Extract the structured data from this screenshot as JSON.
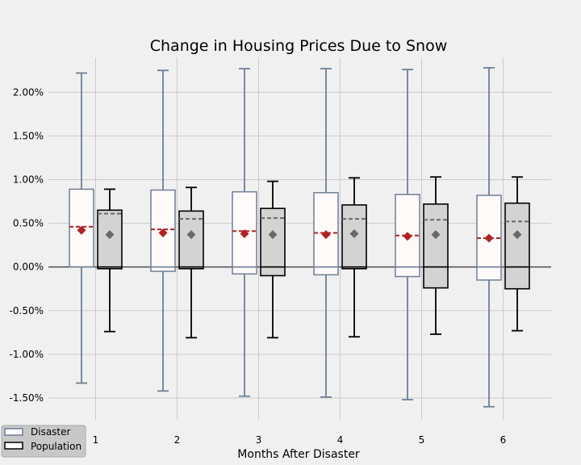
{
  "chart_data": {
    "type": "box",
    "title": "Change in Housing Prices Due to Snow",
    "xlabel": "Months After Disaster",
    "ylabel": "",
    "categories": [
      "1",
      "2",
      "3",
      "4",
      "5",
      "6"
    ],
    "ylim": [
      -0.0175,
      0.024
    ],
    "yticks": [
      -0.015,
      -0.01,
      -0.005,
      0.0,
      0.005,
      0.01,
      0.015,
      0.02
    ],
    "ytick_labels": [
      "-1.50%",
      "-1.00%",
      "-0.50%",
      "0.00%",
      "0.50%",
      "1.00%",
      "1.50%",
      "2.00%"
    ],
    "grid": true,
    "legend_position": "bottom-left",
    "series": [
      {
        "name": "Disaster",
        "box_fill": "#fffafa",
        "edge_color": "#6e7f96",
        "mean_color": "#b22222",
        "boxes": [
          {
            "whislo": -0.0133,
            "q1": 0.0,
            "med": 0.0,
            "q3": 0.0089,
            "whishi": 0.0222,
            "mean": 0.0042,
            "mean_line": 0.0046
          },
          {
            "whislo": -0.0142,
            "q1": -0.0005,
            "med": 0.0,
            "q3": 0.0088,
            "whishi": 0.0225,
            "mean": 0.0039,
            "mean_line": 0.0043
          },
          {
            "whislo": -0.0148,
            "q1": -0.0008,
            "med": 0.0,
            "q3": 0.0086,
            "whishi": 0.0227,
            "mean": 0.0038,
            "mean_line": 0.0041
          },
          {
            "whislo": -0.0149,
            "q1": -0.0009,
            "med": 0.0,
            "q3": 0.0085,
            "whishi": 0.0227,
            "mean": 0.0037,
            "mean_line": 0.0039
          },
          {
            "whislo": -0.0152,
            "q1": -0.0011,
            "med": 0.0,
            "q3": 0.0083,
            "whishi": 0.0226,
            "mean": 0.0035,
            "mean_line": 0.0036
          },
          {
            "whislo": -0.016,
            "q1": -0.0015,
            "med": 0.0,
            "q3": 0.0082,
            "whishi": 0.0228,
            "mean": 0.0033,
            "mean_line": 0.0033
          }
        ]
      },
      {
        "name": "Population",
        "box_fill": "#d3d3d3",
        "edge_color": "#000000",
        "mean_color": "#696969",
        "boxes": [
          {
            "whislo": -0.0074,
            "q1": -0.0002,
            "med": 0.0,
            "q3": 0.0065,
            "whishi": 0.0089,
            "mean": 0.0037,
            "mean_line": 0.0061
          },
          {
            "whislo": -0.0081,
            "q1": -0.0002,
            "med": 0.0,
            "q3": 0.0064,
            "whishi": 0.0091,
            "mean": 0.0037,
            "mean_line": 0.0055
          },
          {
            "whislo": -0.0081,
            "q1": -0.001,
            "med": 0.0,
            "q3": 0.0067,
            "whishi": 0.0098,
            "mean": 0.0037,
            "mean_line": 0.0056
          },
          {
            "whislo": -0.008,
            "q1": -0.0002,
            "med": 0.0,
            "q3": 0.0071,
            "whishi": 0.0102,
            "mean": 0.0038,
            "mean_line": 0.0055
          },
          {
            "whislo": -0.0077,
            "q1": -0.0024,
            "med": 0.0,
            "q3": 0.0072,
            "whishi": 0.0103,
            "mean": 0.0037,
            "mean_line": 0.0054
          },
          {
            "whislo": -0.0073,
            "q1": -0.0025,
            "med": 0.0,
            "q3": 0.0073,
            "whishi": 0.0103,
            "mean": 0.0037,
            "mean_line": 0.0052
          }
        ]
      }
    ]
  }
}
